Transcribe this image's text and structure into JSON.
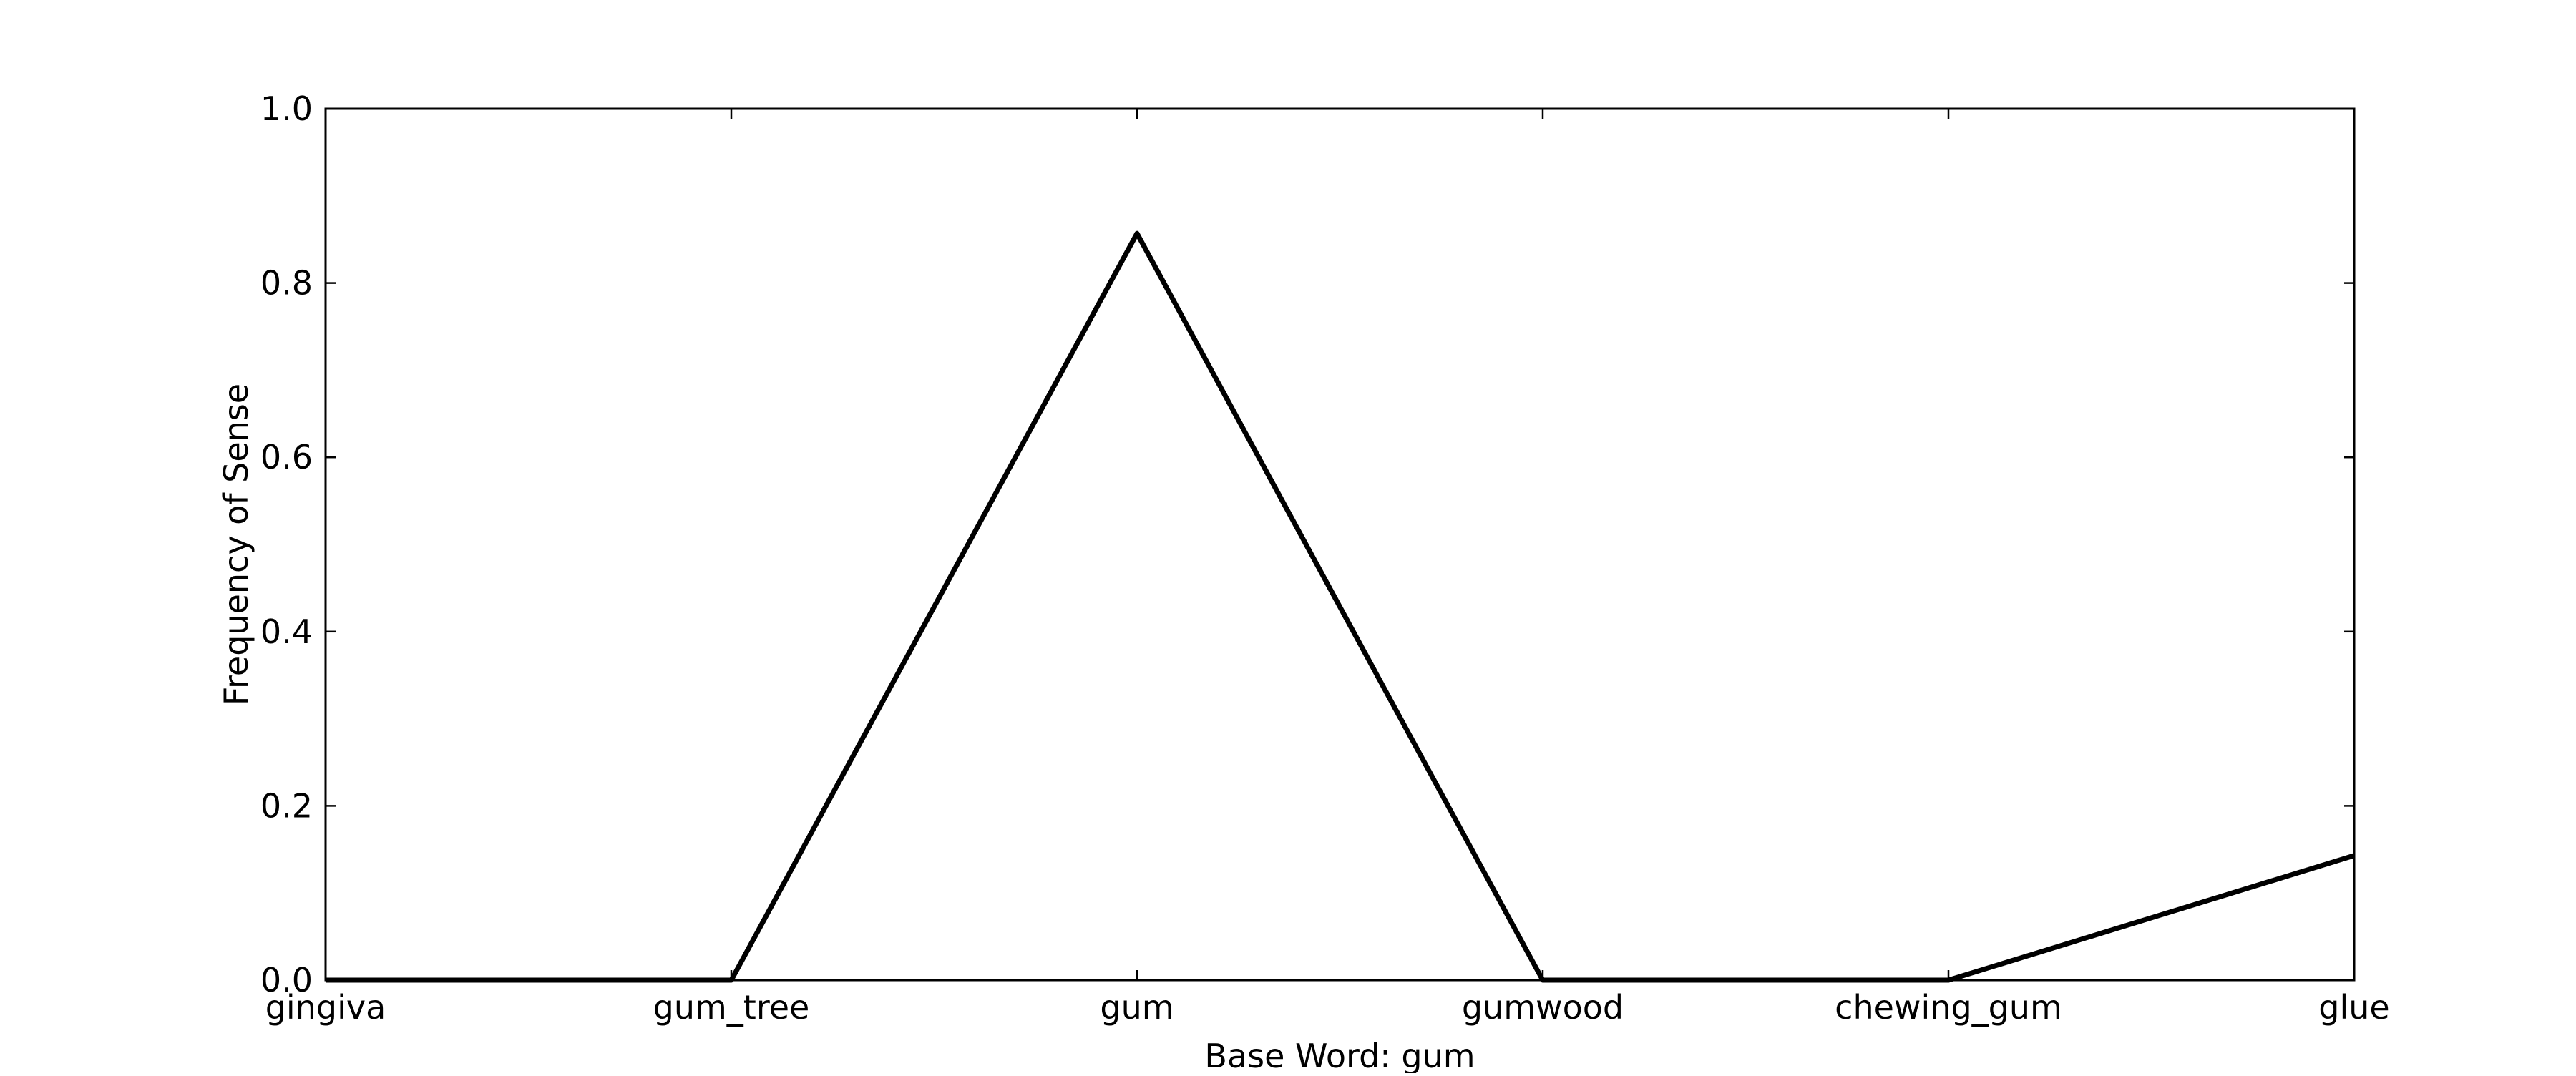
{
  "chart_data": {
    "type": "line",
    "title": "",
    "xlabel": "Base Word: gum",
    "ylabel": "Frequency of Sense",
    "categories": [
      "gingiva",
      "gum_tree",
      "gum",
      "gumwood",
      "chewing_gum",
      "glue"
    ],
    "series": [
      {
        "values": [
          0.0,
          0.0,
          0.857,
          0.0,
          0.0,
          0.143
        ],
        "color": "#000000"
      }
    ],
    "ylim": [
      0.0,
      1.0
    ],
    "yticks": [
      "0.0",
      "0.2",
      "0.4",
      "0.6",
      "0.8",
      "1.0"
    ],
    "grid": false,
    "legend": false
  }
}
